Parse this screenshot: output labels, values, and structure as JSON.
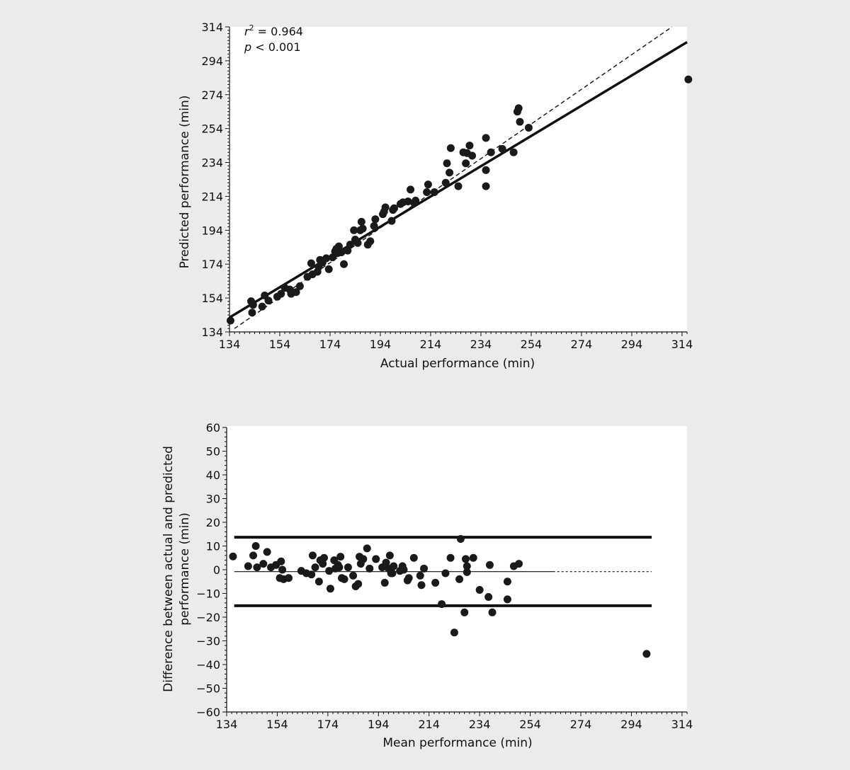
{
  "chart_data": [
    {
      "type": "scatter",
      "title": "",
      "xlabel": "Actual performance (min)",
      "ylabel": "Predicted performance (min)",
      "xlim": [
        134,
        316
      ],
      "ylim": [
        134,
        314
      ],
      "xticks": [
        134,
        154,
        174,
        194,
        214,
        234,
        254,
        274,
        294,
        314
      ],
      "yticks": [
        134,
        154,
        174,
        194,
        214,
        234,
        254,
        274,
        294,
        314
      ],
      "grid": false,
      "annotations": {
        "r2_symbol": "r",
        "r2_exp": "2",
        "r2_value": " = 0.964",
        "p_symbol": "p",
        "p_value": " < 0.001"
      },
      "lines": [
        {
          "name": "",
          "style": "solid",
          "x": [
            134,
            316
          ],
          "y": [
            142.5,
            305
          ]
        },
        {
          "name": "",
          "style": "dashed",
          "x": [
            136,
            310
          ],
          "y": [
            136,
            314
          ]
        }
      ],
      "points": [
        [
          134.4,
          140.7
        ],
        [
          142.6,
          152.1
        ],
        [
          143.0,
          145.4
        ],
        [
          143.4,
          150.0
        ],
        [
          147.0,
          149.0
        ],
        [
          148.0,
          155.5
        ],
        [
          149.5,
          152.5
        ],
        [
          153.0,
          154.8
        ],
        [
          154.5,
          156.5
        ],
        [
          156.0,
          160.0
        ],
        [
          158.0,
          159.0
        ],
        [
          158.5,
          156.5
        ],
        [
          160.5,
          157.5
        ],
        [
          162.0,
          161.0
        ],
        [
          165.0,
          166.5
        ],
        [
          166.5,
          174.5
        ],
        [
          167.0,
          168.0
        ],
        [
          169.0,
          169.5
        ],
        [
          169.5,
          172.5
        ],
        [
          170.0,
          176.5
        ],
        [
          171.0,
          175.0
        ],
        [
          172.5,
          177.5
        ],
        [
          173.5,
          171.0
        ],
        [
          175.0,
          178.0
        ],
        [
          176.0,
          181.5
        ],
        [
          176.5,
          183.0
        ],
        [
          177.0,
          180.5
        ],
        [
          177.5,
          184.5
        ],
        [
          178.5,
          181.0
        ],
        [
          179.5,
          174.0
        ],
        [
          181.0,
          182.0
        ],
        [
          182.0,
          185.5
        ],
        [
          183.5,
          194.0
        ],
        [
          184.0,
          188.5
        ],
        [
          185.0,
          186.5
        ],
        [
          186.0,
          194.0
        ],
        [
          186.5,
          199.0
        ],
        [
          187.0,
          195.0
        ],
        [
          189.0,
          185.5
        ],
        [
          190.0,
          187.5
        ],
        [
          191.5,
          196.5
        ],
        [
          192.0,
          200.5
        ],
        [
          195.0,
          203.5
        ],
        [
          195.5,
          205.0
        ],
        [
          196.0,
          207.5
        ],
        [
          198.5,
          199.5
        ],
        [
          199.0,
          206.0
        ],
        [
          199.5,
          207.0
        ],
        [
          202.0,
          209.5
        ],
        [
          203.0,
          210.5
        ],
        [
          205.0,
          211.0
        ],
        [
          206.0,
          218.0
        ],
        [
          207.5,
          210.0
        ],
        [
          208.0,
          211.5
        ],
        [
          212.5,
          216.5
        ],
        [
          213.0,
          221.0
        ],
        [
          215.5,
          216.5
        ],
        [
          220.0,
          222.0
        ],
        [
          220.5,
          233.5
        ],
        [
          221.5,
          228.0
        ],
        [
          222.0,
          242.5
        ],
        [
          225.0,
          220.0
        ],
        [
          227.0,
          240.0
        ],
        [
          228.0,
          233.5
        ],
        [
          228.5,
          239.5
        ],
        [
          229.5,
          244.0
        ],
        [
          230.5,
          238.0
        ],
        [
          236.0,
          248.5
        ],
        [
          236.0,
          229.5
        ],
        [
          236.0,
          220.0
        ],
        [
          238.0,
          240.0
        ],
        [
          242.5,
          242.0
        ],
        [
          247.0,
          240.0
        ],
        [
          248.5,
          264.0
        ],
        [
          249.0,
          266.0
        ],
        [
          249.5,
          258.0
        ],
        [
          253.0,
          254.5
        ],
        [
          316.5,
          283.0
        ]
      ]
    },
    {
      "type": "scatter",
      "title": "",
      "xlabel": "Mean performance (min)",
      "ylabel_line1": "Difference between actual and predicted",
      "ylabel_line2": "performance (min)",
      "xlim": [
        134,
        316
      ],
      "ylim": [
        -60,
        60
      ],
      "xticks": [
        134,
        154,
        174,
        194,
        214,
        234,
        254,
        274,
        294,
        314
      ],
      "yticks": [
        60,
        50,
        40,
        30,
        20,
        10,
        0,
        -10,
        -20,
        -30,
        -40,
        -50,
        -60
      ],
      "ytick_labels": [
        "60",
        "50",
        "40",
        "30",
        "20",
        "10",
        "0",
        "−10",
        "−20",
        "−30",
        "−40",
        "−50",
        "−60"
      ],
      "grid": false,
      "lines": [
        {
          "name": "",
          "style": "thick",
          "y": 13.7,
          "x": [
            137,
            302
          ]
        },
        {
          "name": "",
          "style": "thick",
          "y": -15.2,
          "x": [
            137,
            302
          ]
        },
        {
          "name": "",
          "style": "thin",
          "y": -0.8,
          "x": [
            137,
            263
          ]
        },
        {
          "name": "",
          "style": "dotted",
          "y": -0.8,
          "x": [
            263,
            302
          ]
        }
      ],
      "points": [
        [
          136.5,
          5.6
        ],
        [
          142.5,
          1.5
        ],
        [
          144.5,
          6.0
        ],
        [
          145.5,
          10.0
        ],
        [
          146.0,
          1.0
        ],
        [
          148.5,
          2.5
        ],
        [
          150.0,
          7.5
        ],
        [
          151.5,
          1.0
        ],
        [
          153.5,
          2.0
        ],
        [
          155.0,
          -3.5
        ],
        [
          155.5,
          3.5
        ],
        [
          156.0,
          0.0
        ],
        [
          156.5,
          -4.0
        ],
        [
          158.5,
          -3.5
        ],
        [
          163.5,
          -0.5
        ],
        [
          165.5,
          -1.5
        ],
        [
          167.5,
          -2.0
        ],
        [
          168.0,
          6.0
        ],
        [
          169.0,
          1.0
        ],
        [
          170.5,
          -5.0
        ],
        [
          171.0,
          4.0
        ],
        [
          172.0,
          2.5
        ],
        [
          172.5,
          5.0
        ],
        [
          174.5,
          -0.5
        ],
        [
          175.0,
          -8.0
        ],
        [
          176.5,
          4.0
        ],
        [
          177.0,
          0.5
        ],
        [
          178.0,
          2.0
        ],
        [
          178.5,
          1.0
        ],
        [
          179.0,
          5.5
        ],
        [
          179.5,
          -3.5
        ],
        [
          180.5,
          -4.0
        ],
        [
          182.0,
          1.0
        ],
        [
          184.0,
          -2.5
        ],
        [
          185.0,
          -7.0
        ],
        [
          186.0,
          -6.0
        ],
        [
          186.5,
          5.5
        ],
        [
          187.0,
          2.5
        ],
        [
          188.0,
          4.5
        ],
        [
          189.5,
          9.0
        ],
        [
          190.5,
          0.5
        ],
        [
          193.0,
          4.5
        ],
        [
          195.5,
          1.0
        ],
        [
          196.5,
          -5.5
        ],
        [
          197.0,
          3.0
        ],
        [
          198.0,
          0.5
        ],
        [
          198.5,
          6.0
        ],
        [
          199.0,
          -1.5
        ],
        [
          199.5,
          -1.5
        ],
        [
          200.0,
          1.5
        ],
        [
          202.5,
          -0.5
        ],
        [
          203.5,
          1.5
        ],
        [
          204.0,
          0.0
        ],
        [
          205.5,
          -4.5
        ],
        [
          206.0,
          -3.5
        ],
        [
          208.0,
          5.0
        ],
        [
          210.5,
          -2.5
        ],
        [
          211.0,
          -6.5
        ],
        [
          212.0,
          0.5
        ],
        [
          216.5,
          -5.5
        ],
        [
          219.0,
          -14.5
        ],
        [
          220.5,
          -1.5
        ],
        [
          222.5,
          5.0
        ],
        [
          224.0,
          -26.5
        ],
        [
          226.0,
          -4.0
        ],
        [
          226.5,
          13.0
        ],
        [
          228.0,
          -18.0
        ],
        [
          228.5,
          4.5
        ],
        [
          229.0,
          1.5
        ],
        [
          229.0,
          -1.0
        ],
        [
          231.5,
          5.0
        ],
        [
          234.0,
          -8.5
        ],
        [
          237.5,
          -11.5
        ],
        [
          238.0,
          2.0
        ],
        [
          239.0,
          -18.0
        ],
        [
          245.0,
          -5.0
        ],
        [
          245.0,
          -12.5
        ],
        [
          247.5,
          1.5
        ],
        [
          249.5,
          2.5
        ],
        [
          300.0,
          -35.5
        ]
      ]
    }
  ]
}
